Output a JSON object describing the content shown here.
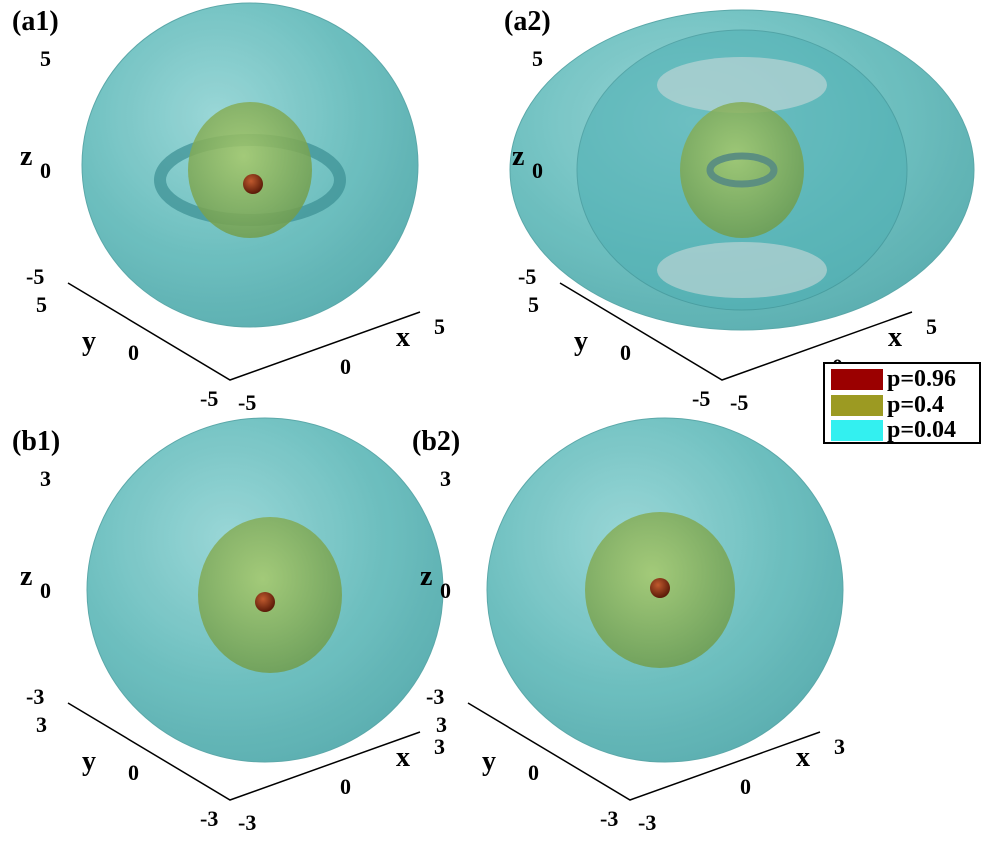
{
  "chart_data": {
    "type": "isosurface-3d",
    "panels": [
      {
        "label": "(a1)",
        "xlabel": "x",
        "ylabel": "y",
        "zlabel": "z",
        "xlim": [
          -5,
          5
        ],
        "ylim": [
          -5,
          5
        ],
        "zlim": [
          -5,
          5
        ],
        "xticks": [
          "-5",
          "0",
          "5"
        ],
        "yticks": [
          "-5",
          "0",
          "5"
        ],
        "zticks": [
          "-5",
          "0",
          "5"
        ]
      },
      {
        "label": "(a2)",
        "xlabel": "x",
        "ylabel": "y",
        "zlabel": "z",
        "xlim": [
          -5,
          5
        ],
        "ylim": [
          -5,
          5
        ],
        "zlim": [
          -5,
          5
        ],
        "xticks": [
          "-5",
          "0",
          "5"
        ],
        "yticks": [
          "-5",
          "0",
          "5"
        ],
        "zticks": [
          "-5",
          "0",
          "5"
        ]
      },
      {
        "label": "(b1)",
        "xlabel": "x",
        "ylabel": "y",
        "zlabel": "z",
        "xlim": [
          -3,
          3
        ],
        "ylim": [
          -3,
          3
        ],
        "zlim": [
          -3,
          3
        ],
        "xticks": [
          "-3",
          "0",
          "3"
        ],
        "yticks": [
          "-3",
          "0",
          "3"
        ],
        "zticks": [
          "-3",
          "0",
          "3"
        ]
      },
      {
        "label": "(b2)",
        "xlabel": "x",
        "ylabel": "y",
        "zlabel": "z",
        "xlim": [
          -3,
          3
        ],
        "ylim": [
          -3,
          3
        ],
        "zlim": [
          -3,
          3
        ],
        "xticks": [
          "-3",
          "0",
          "3"
        ],
        "yticks": [
          "-3",
          "0",
          "3"
        ],
        "zticks": [
          "-3",
          "0",
          "3"
        ]
      }
    ],
    "legend": {
      "placement": "right-middle",
      "entries": [
        {
          "label": "p=0.96",
          "color": "#9b0000"
        },
        {
          "label": "p=0.4",
          "color": "#9c9a22"
        },
        {
          "label": "p=0.04",
          "color": "#33f0f0"
        }
      ]
    },
    "grid": false
  }
}
